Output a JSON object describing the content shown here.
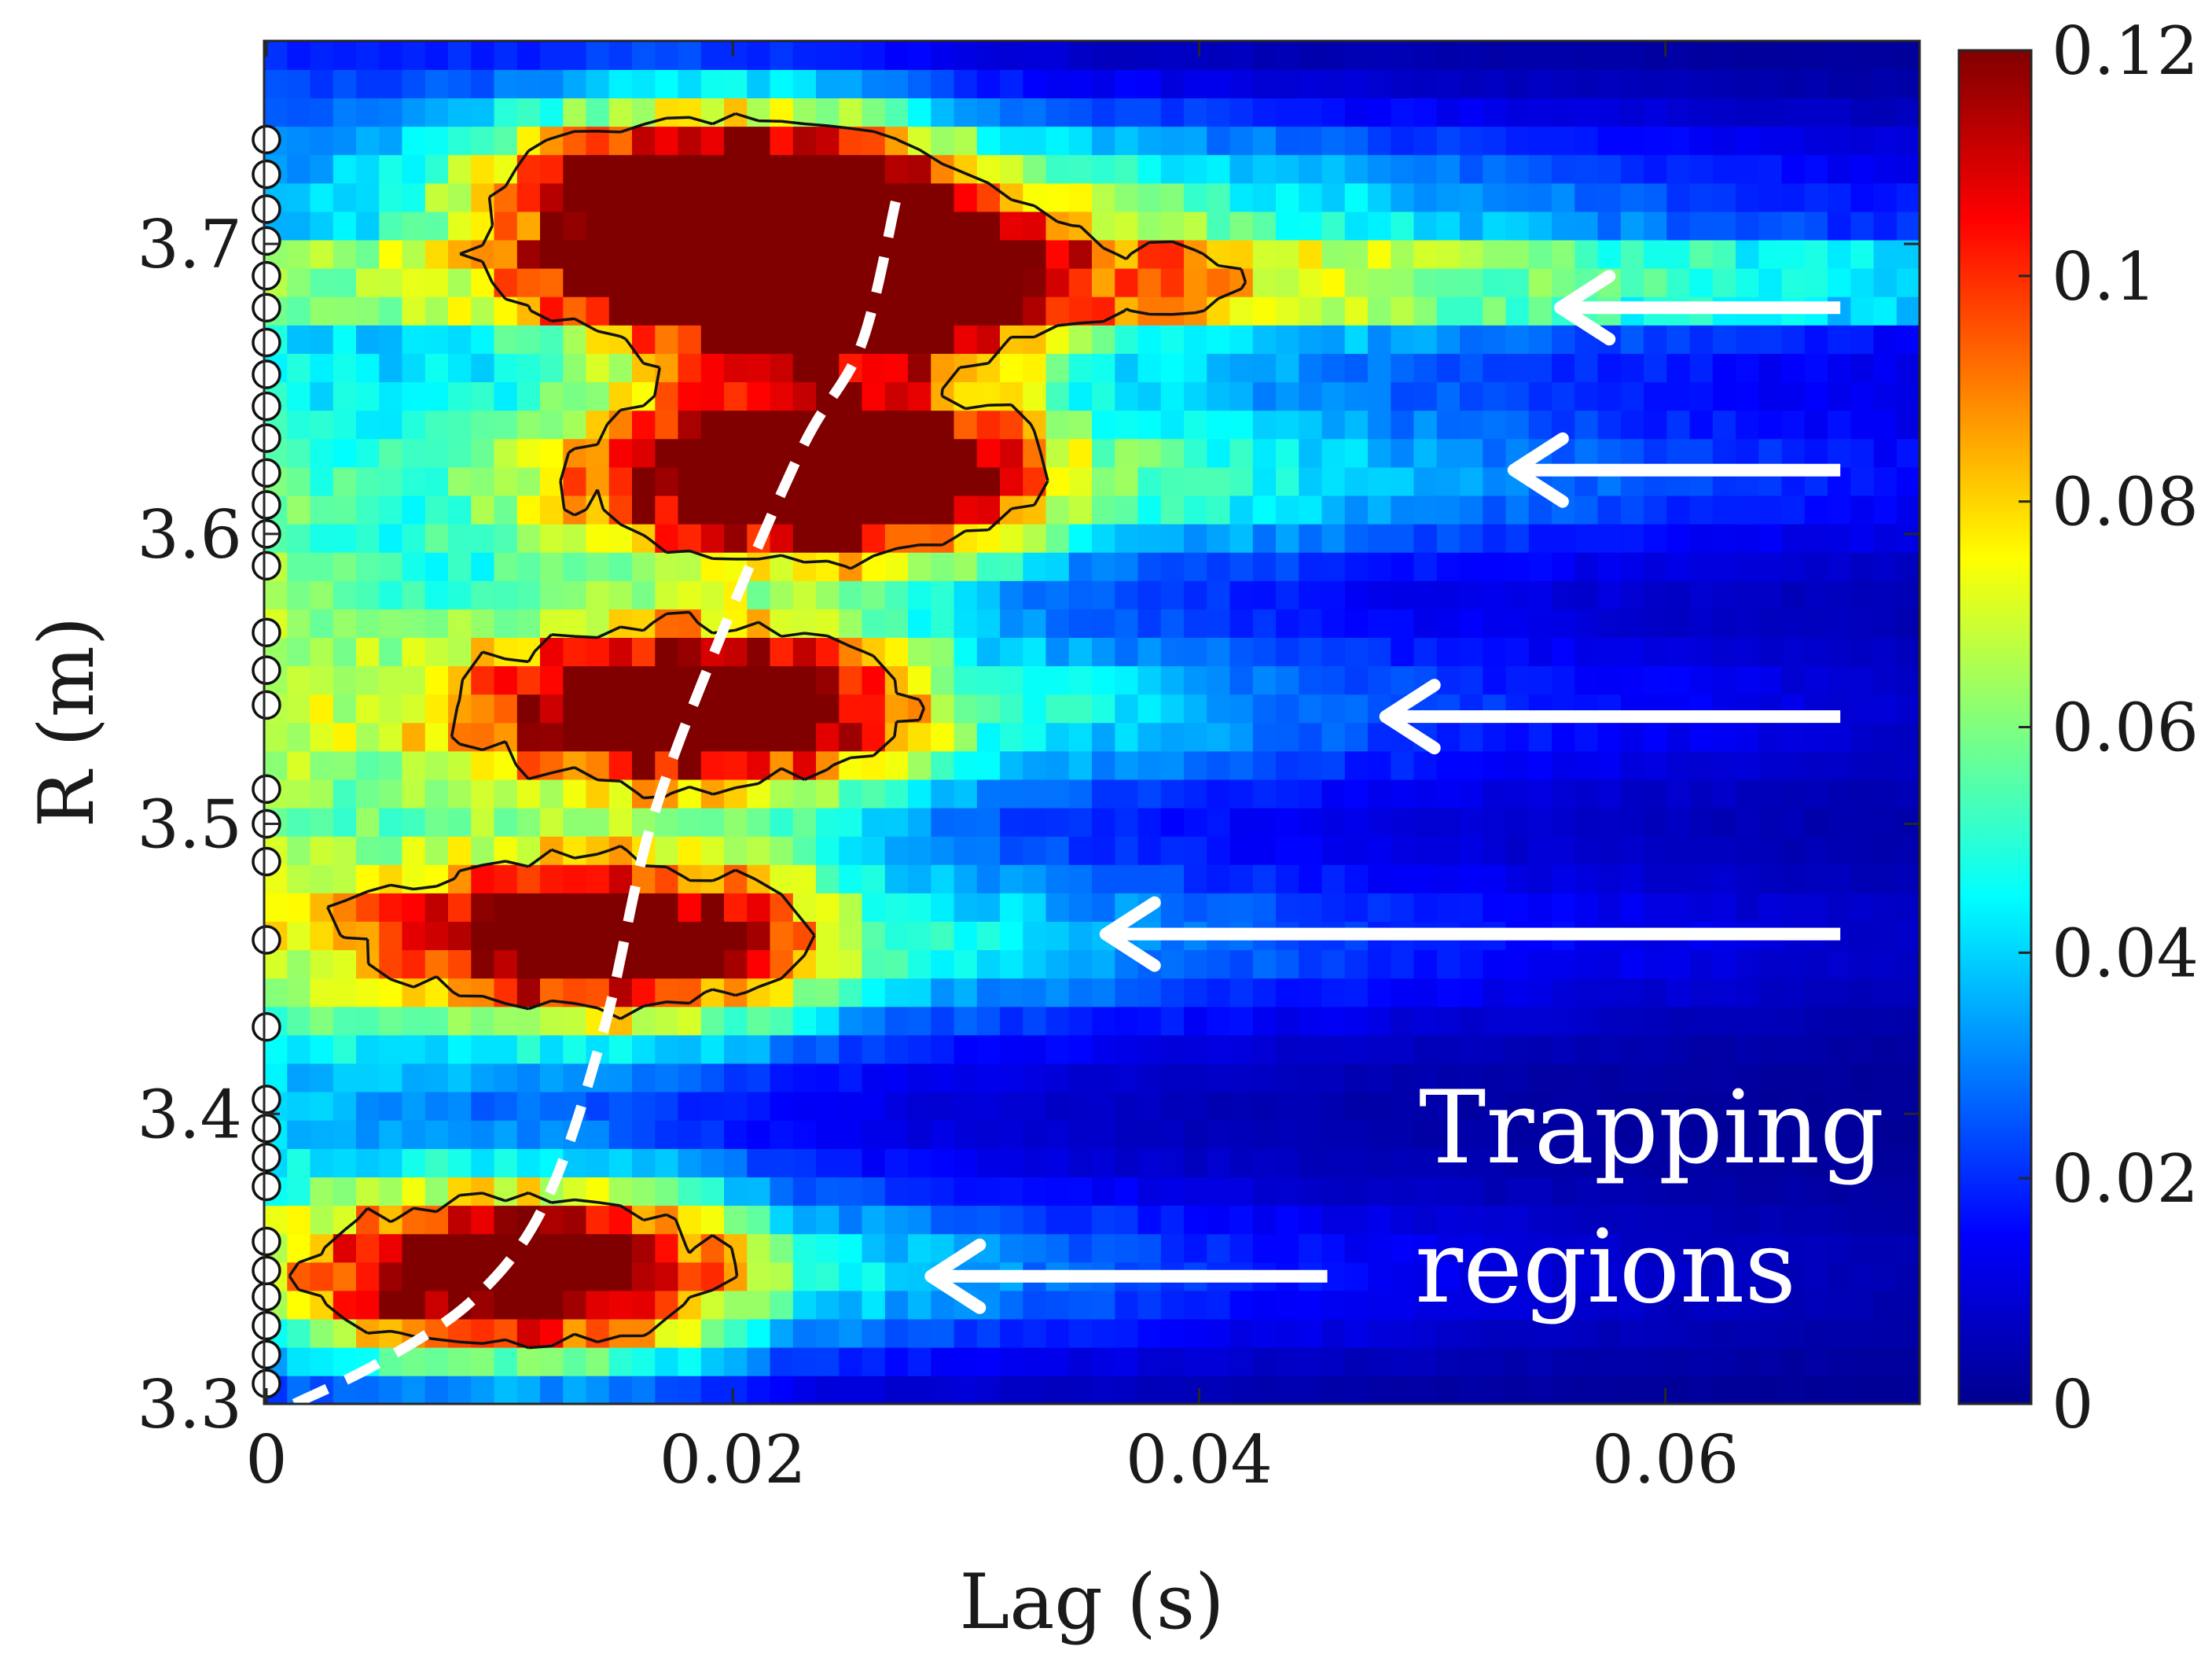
{
  "chart_data": {
    "type": "heatmap",
    "title": "",
    "xlabel": "Lag (s)",
    "ylabel": "R (m)",
    "xlim": [
      -0.0001,
      0.0709
    ],
    "ylim": [
      3.3,
      3.77
    ],
    "x_ticks": [
      0,
      0.02,
      0.04,
      0.06
    ],
    "x_tick_labels": [
      "0",
      "0.02",
      "0.04",
      "0.06"
    ],
    "y_ticks": [
      3.3,
      3.4,
      3.5,
      3.6,
      3.7
    ],
    "y_tick_labels": [
      "3.3",
      "3.4",
      "3.5",
      "3.6",
      "3.7"
    ],
    "colorbar": {
      "colormap": "jet",
      "range": [
        0,
        0.12
      ],
      "ticks": [
        0,
        0.02,
        0.04,
        0.06,
        0.08,
        0.1,
        0.12
      ],
      "tick_labels": [
        "0",
        "0.02",
        "0.04",
        "0.06",
        "0.08",
        "0.1",
        "0.12"
      ]
    },
    "grid": {
      "nx": 72,
      "ny": 48
    },
    "ridges": [
      {
        "r": 3.345,
        "peak_lag": 0.011,
        "extent_lag": 0.026,
        "amp": 0.14
      },
      {
        "r": 3.46,
        "peak_lag": 0.015,
        "extent_lag": 0.033,
        "amp": 0.125
      },
      {
        "r": 3.54,
        "peak_lag": 0.019,
        "extent_lag": 0.036,
        "amp": 0.135
      },
      {
        "r": 3.62,
        "peak_lag": 0.024,
        "extent_lag": 0.044,
        "amp": 0.16
      },
      {
        "r": 3.685,
        "peak_lag": 0.025,
        "extent_lag": 0.047,
        "amp": 0.16
      },
      {
        "r": 3.72,
        "peak_lag": 0.02,
        "extent_lag": 0.04,
        "amp": 0.13
      }
    ],
    "contour_level": 0.085,
    "probe_markers": {
      "lag": 0,
      "r": [
        3.307,
        3.317,
        3.327,
        3.337,
        3.346,
        3.356,
        3.375,
        3.385,
        3.395,
        3.405,
        3.43,
        3.46,
        3.487,
        3.5,
        3.512,
        3.541,
        3.553,
        3.566,
        3.589,
        3.6,
        3.61,
        3.621,
        3.633,
        3.644,
        3.655,
        3.666,
        3.678,
        3.689,
        3.701,
        3.712,
        3.724,
        3.736
      ]
    },
    "trend_line": {
      "style": "white dashed",
      "points": [
        [
          0.0012,
          3.3
        ],
        [
          0.005,
          3.315
        ],
        [
          0.009,
          3.337
        ],
        [
          0.012,
          3.37
        ],
        [
          0.0145,
          3.43
        ],
        [
          0.0165,
          3.5
        ],
        [
          0.0195,
          3.565
        ],
        [
          0.023,
          3.63
        ],
        [
          0.0255,
          3.665
        ],
        [
          0.027,
          3.715
        ]
      ]
    },
    "arrows": [
      {
        "from": [
          0.0675,
          3.678
        ],
        "to": [
          0.0555,
          3.678
        ]
      },
      {
        "from": [
          0.0675,
          3.622
        ],
        "to": [
          0.0535,
          3.622
        ]
      },
      {
        "from": [
          0.0675,
          3.537
        ],
        "to": [
          0.048,
          3.537
        ]
      },
      {
        "from": [
          0.0675,
          3.462
        ],
        "to": [
          0.036,
          3.462
        ]
      },
      {
        "from": [
          0.0455,
          3.344
        ],
        "to": [
          0.0285,
          3.344
        ]
      }
    ],
    "annotation": [
      "Trapping",
      "regions"
    ]
  }
}
